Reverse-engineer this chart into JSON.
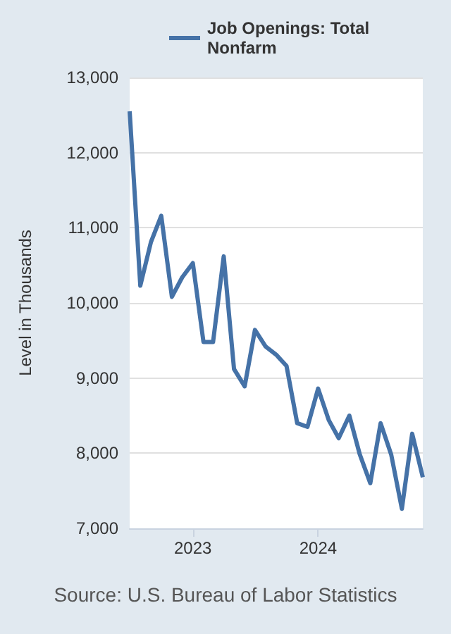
{
  "chart_data": {
    "type": "line",
    "ylabel": "Level in Thousands",
    "annotations": [
      "Source: U.S. Bureau of Labor Statistics"
    ],
    "x": [
      "2022-07",
      "2022-08",
      "2022-09",
      "2022-10",
      "2022-11",
      "2022-12",
      "2023-01",
      "2023-02",
      "2023-03",
      "2023-04",
      "2023-05",
      "2023-06",
      "2023-07",
      "2023-08",
      "2023-09",
      "2023-10",
      "2023-11",
      "2023-12",
      "2024-01",
      "2024-02",
      "2024-03",
      "2024-04",
      "2024-05",
      "2024-06",
      "2024-07",
      "2024-08",
      "2024-09",
      "2024-10",
      "2024-11"
    ],
    "series": [
      {
        "name": "Job Openings: Total Nonfarm",
        "color": "#4572a7",
        "values": [
          12550,
          10230,
          10810,
          11160,
          10080,
          10340,
          10530,
          9480,
          9480,
          10620,
          9120,
          8890,
          9640,
          9420,
          9310,
          9160,
          8400,
          8350,
          8860,
          8440,
          8200,
          8500,
          7990,
          7600,
          8400,
          7980,
          7260,
          8260,
          7680
        ]
      }
    ],
    "xlim": [
      "2022-07",
      "2024-11"
    ],
    "xticks": [
      {
        "value": "2023-01",
        "label": "2023"
      },
      {
        "value": "2024-01",
        "label": "2024"
      }
    ],
    "ylim": [
      7000,
      13000
    ],
    "yticks": [
      {
        "value": 7000,
        "label": "7,000"
      },
      {
        "value": 8000,
        "label": "8,000"
      },
      {
        "value": 9000,
        "label": "9,000"
      },
      {
        "value": 10000,
        "label": "10,000"
      },
      {
        "value": 11000,
        "label": "11,000"
      },
      {
        "value": 12000,
        "label": "12,000"
      },
      {
        "value": 13000,
        "label": "13,000"
      }
    ],
    "grid": "y",
    "legend": "top left",
    "marker": "none",
    "line_style": "solid"
  }
}
